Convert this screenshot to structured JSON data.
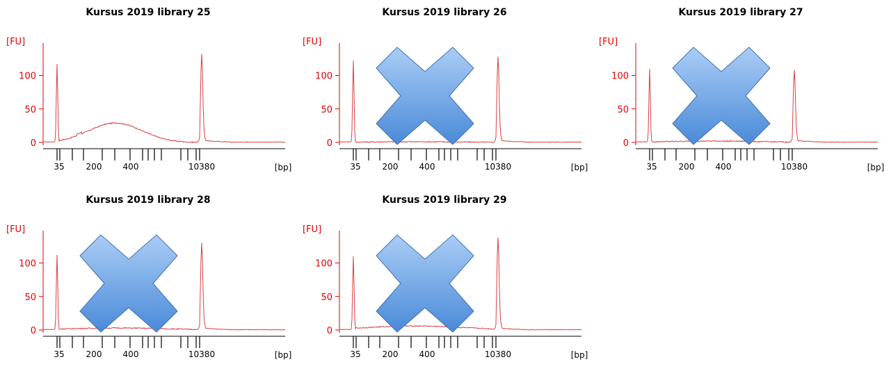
{
  "chart_data": [
    {
      "type": "line",
      "title": "Kursus 2019 library 25",
      "ylabel": "[FU]",
      "xlabel": "[bp]",
      "y_ticks": [
        0,
        50,
        100
      ],
      "x_tick_labels": [
        "35",
        "200",
        "400",
        "10380"
      ],
      "rejected": false,
      "series": [
        {
          "x_bp": [
            35,
            150,
            200,
            300,
            400,
            500,
            600,
            10380
          ],
          "values": [
            117,
            0,
            5,
            29,
            18,
            3,
            0,
            132
          ]
        }
      ]
    },
    {
      "type": "line",
      "title": "Kursus 2019 library 26",
      "ylabel": "[FU]",
      "xlabel": "[bp]",
      "y_ticks": [
        0,
        50,
        100
      ],
      "x_tick_labels": [
        "35",
        "200",
        "400",
        "10380"
      ],
      "rejected": true,
      "series": [
        {
          "x_bp": [
            35,
            200,
            400,
            1000,
            10380
          ],
          "values": [
            122,
            0,
            1,
            0,
            128
          ]
        }
      ]
    },
    {
      "type": "line",
      "title": "Kursus 2019 library 27",
      "ylabel": "[FU]",
      "xlabel": "[bp]",
      "y_ticks": [
        0,
        50,
        100
      ],
      "x_tick_labels": [
        "35",
        "200",
        "400",
        "10380"
      ],
      "rejected": true,
      "series": [
        {
          "x_bp": [
            35,
            200,
            400,
            1000,
            10380
          ],
          "values": [
            110,
            1,
            2,
            1,
            108
          ]
        }
      ]
    },
    {
      "type": "line",
      "title": "Kursus 2019 library 28",
      "ylabel": "[FU]",
      "xlabel": "[bp]",
      "y_ticks": [
        0,
        50,
        100
      ],
      "x_tick_labels": [
        "35",
        "200",
        "400",
        "10380"
      ],
      "rejected": true,
      "series": [
        {
          "x_bp": [
            35,
            200,
            400,
            1000,
            10380
          ],
          "values": [
            112,
            2,
            3,
            2,
            130
          ]
        }
      ]
    },
    {
      "type": "line",
      "title": "Kursus 2019 library 29",
      "ylabel": "[FU]",
      "xlabel": "[bp]",
      "y_ticks": [
        0,
        50,
        100
      ],
      "x_tick_labels": [
        "35",
        "200",
        "400",
        "10380"
      ],
      "rejected": true,
      "series": [
        {
          "x_bp": [
            35,
            200,
            400,
            1000,
            10380
          ],
          "values": [
            110,
            2,
            6,
            3,
            138
          ]
        }
      ]
    }
  ],
  "colors": {
    "trace": "#d84040",
    "axis": "#e00000",
    "cross_light": "#aacdf6",
    "cross_dark": "#4a8ad8",
    "cross_stroke": "#3f6faa"
  }
}
